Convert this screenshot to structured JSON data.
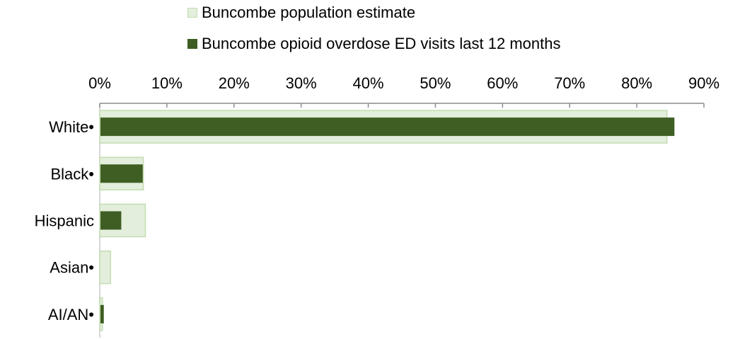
{
  "chart_data": {
    "type": "bar",
    "orientation": "horizontal",
    "categories": [
      "White•",
      "Black•",
      "Hispanic",
      "Asian•",
      "AI/AN•"
    ],
    "series": [
      {
        "name": "Buncombe population estimate",
        "color": "#e3eedc",
        "border": "#c3dcb0",
        "values": [
          84.5,
          6.5,
          6.8,
          1.6,
          0.4
        ]
      },
      {
        "name": "Buncombe opioid overdose ED visits last 12 months",
        "color": "#3e5e23",
        "values": [
          85.5,
          6.3,
          3.1,
          0.0,
          0.5
        ]
      }
    ],
    "xlim": [
      0,
      90
    ],
    "xticks": [
      0,
      10,
      20,
      30,
      40,
      50,
      60,
      70,
      80,
      90
    ],
    "xtick_labels": [
      "0%",
      "10%",
      "20%",
      "30%",
      "40%",
      "50%",
      "60%",
      "70%",
      "80%",
      "90%"
    ],
    "axis_position": "top",
    "legend_position": "top",
    "grid": false
  }
}
